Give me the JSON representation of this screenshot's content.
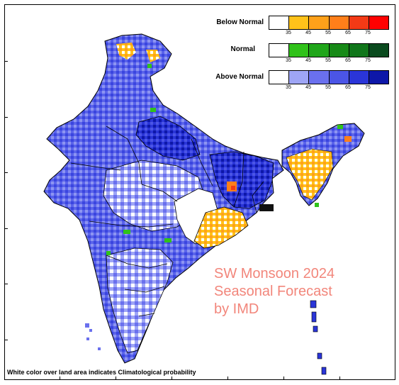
{
  "colors": {
    "white": "#ffffff",
    "below": [
      "#ffffff",
      "#ffc21a",
      "#ffa11a",
      "#ff7f1a",
      "#f33a16",
      "#ff0000"
    ],
    "normal": [
      "#ffffff",
      "#30c21a",
      "#20a61a",
      "#178a17",
      "#10761a",
      "#0a4a1e"
    ],
    "above": [
      "#ffffff",
      "#9ea5f5",
      "#6a70ee",
      "#4b55e6",
      "#2a35d8",
      "#0d17a8"
    ],
    "border": "#000000",
    "watermark": "#f2867b"
  },
  "legend": [
    {
      "label": "Below Normal",
      "ticks": [
        "35",
        "45",
        "55",
        "65",
        "75"
      ]
    },
    {
      "label": "Normal",
      "ticks": [
        "35",
        "45",
        "55",
        "65",
        "75"
      ]
    },
    {
      "label": "Above Normal",
      "ticks": [
        "35",
        "45",
        "55",
        "65",
        "75"
      ]
    }
  ],
  "watermark": {
    "line1": "SW Monsoon 2024",
    "line2": "Seasonal Forecast",
    "line3": "by IMD"
  },
  "footnote": "White color over land area indicates Climatological probability"
}
